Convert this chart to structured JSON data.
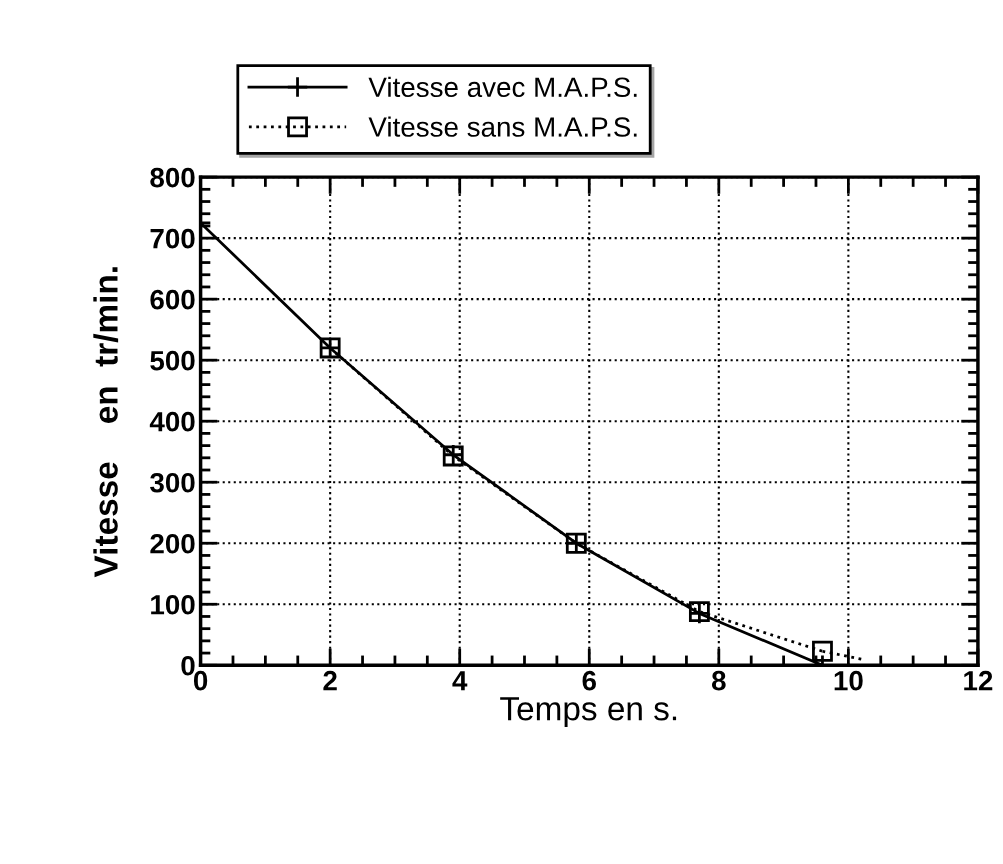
{
  "chart_data": {
    "type": "line",
    "xlabel": "Temps en s.",
    "ylabel": "Vitesse    en  tr/min.",
    "xlim": [
      0,
      12
    ],
    "xticks": [
      0,
      2,
      4,
      6,
      8,
      10,
      12
    ],
    "ylim": [
      0,
      800
    ],
    "yticks": [
      0,
      100,
      200,
      300,
      400,
      500,
      600,
      700,
      800
    ],
    "grid": true,
    "legend": "top",
    "series": [
      {
        "name": "Vitesse avec M.A.P.S.",
        "color": "#000000",
        "marker": "cross",
        "line_style": "solid",
        "x": [
          0,
          2,
          3.9,
          5.8,
          7.7,
          9.6,
          12
        ],
        "values": [
          725,
          520,
          345,
          200,
          85,
          0,
          0
        ]
      },
      {
        "name": "Vitesse sans M.A.P.S.",
        "color": "#000000",
        "marker": "square",
        "line_style": "dotted",
        "x": [
          2,
          3.9,
          5.8,
          7.7,
          9.6
        ],
        "values": [
          520,
          343,
          200,
          88,
          23
        ]
      },
      {
        "color": "#000000",
        "marker": "none",
        "line_style": "dotted",
        "x": [
          9.6,
          10.2
        ],
        "values": [
          23,
          10
        ]
      }
    ]
  }
}
